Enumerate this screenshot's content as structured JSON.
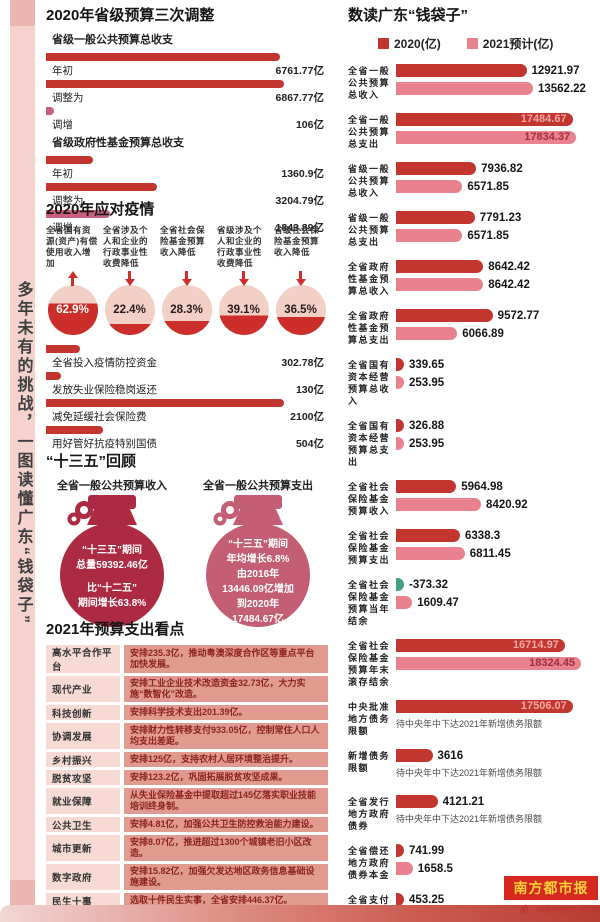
{
  "page": {
    "side_title": "多年未有的挑战，一图读懂广东“钱袋子”",
    "brand": {
      "name": "南方都市报",
      "sub": "奥一网oeeee.com"
    }
  },
  "colors": {
    "primary_red": "#c2362f",
    "accent_magenta": "#c95f7e",
    "pink_bar": "#e8828f",
    "green_bar": "#43a07a",
    "circle_bg": "#f3d0c6",
    "circle_fill": "#cb2e2b",
    "bag_dark": "#ad2a43",
    "bag_pink": "#c35e74",
    "inside_on_dark": "#efa9a4",
    "inside_on_pink": "#a52f38"
  },
  "adjustments": {
    "title": "2020年省级预算三次调整",
    "groups": [
      {
        "subtitle": "省级一般公共预算总收支",
        "rows": [
          {
            "label": "年初",
            "display": "6761.77亿",
            "value": 6761.77,
            "tone": "dark"
          },
          {
            "label": "调整为",
            "display": "6867.77亿",
            "value": 6867.77,
            "tone": "dark"
          },
          {
            "label": "调增",
            "display": "106亿",
            "value": 106,
            "tone": "pink"
          }
        ]
      },
      {
        "subtitle": "省级政府性基金预算总收支",
        "rows": [
          {
            "label": "年初",
            "display": "1360.9亿",
            "value": 1360.9,
            "tone": "dark"
          },
          {
            "label": "调整为",
            "display": "3204.79亿",
            "value": 3204.79,
            "tone": "dark"
          },
          {
            "label": "调增",
            "display": "1843.89亿",
            "value": 1843.89,
            "tone": "pink"
          }
        ]
      }
    ]
  },
  "covid": {
    "title": "2020年应对疫情",
    "circles": [
      {
        "label": "全省国有资源(资产)有偿使用收入增加",
        "pct": "62.9%",
        "fill": 62.9,
        "dir": "up"
      },
      {
        "label": "全省涉及个人和企业的行政事业性收费降低",
        "pct": "22.4%",
        "fill": 22.4,
        "dir": "down"
      },
      {
        "label": "全省社会保险基金预算收入降低",
        "pct": "28.3%",
        "fill": 28.3,
        "dir": "down"
      },
      {
        "label": "省级涉及个人和企业的行政事业性收费降低",
        "pct": "39.1%",
        "fill": 39.1,
        "dir": "down"
      },
      {
        "label": "省级社会保险基金预算收入降低",
        "pct": "36.5%",
        "fill": 36.5,
        "dir": "down"
      }
    ],
    "rows": [
      {
        "label": "全省投入疫情防控资金",
        "display": "302.78亿",
        "value": 302.78,
        "tone": "dark"
      },
      {
        "label": "发放失业保险稳岗返还",
        "display": "130亿",
        "value": 130,
        "tone": "dark"
      },
      {
        "label": "减免延缓社会保险费",
        "display": "2100亿",
        "value": 2100,
        "tone": "dark"
      },
      {
        "label": "用好管好抗疫特别国债",
        "display": "504亿",
        "value": 504,
        "tone": "dark"
      }
    ]
  },
  "review": {
    "title": "“十三五”回顾",
    "bags": [
      {
        "header": "全省一般公共预算收入",
        "tone": "dark",
        "lines": [
          "“十三五”期间",
          "总量59392.46亿",
          "",
          "比“十二五”",
          "期间增长63.8%"
        ]
      },
      {
        "header": "全省一般公共预算支出",
        "tone": "pink",
        "lines": [
          "“十三五”期间",
          "年均增长6.8%",
          "由2016年",
          "13446.09亿增加",
          "到2020年",
          "17484.67亿"
        ]
      }
    ]
  },
  "outlook": {
    "title": "2021年预算支出看点",
    "rows": [
      {
        "label": "高水平合作平台",
        "desc": "安排235.3亿，推动粤澳深度合作区等重点平台加快发展。"
      },
      {
        "label": "现代产业",
        "desc": "安排工业企业技术改造资金32.73亿，大力实施“数智化”改造。"
      },
      {
        "label": "科技创新",
        "desc": "安排科学技术支出201.39亿。"
      },
      {
        "label": "协调发展",
        "desc": "安排财力性转移支付933.05亿，控制常住人口人均支出差距。"
      },
      {
        "label": "乡村振兴",
        "desc": "安排125亿，支持农村人居环境整治提升。"
      },
      {
        "label": "脱贫攻坚",
        "desc": "安排123.2亿，巩固拓展脱贫攻坚成果。"
      },
      {
        "label": "就业保障",
        "desc": "从失业保险基金中提取超过145亿落实职业技能培训终身制。"
      },
      {
        "label": "公共卫生",
        "desc": "安排4.81亿，加强公共卫生防控救治能力建设。"
      },
      {
        "label": "城市更新",
        "desc": "安排8.07亿，推进超过1300个城镇老旧小区改造。"
      },
      {
        "label": "数字政府",
        "desc": "安排15.82亿，加强欠发达地区政务信息基础设施建设。"
      },
      {
        "label": "民生十事",
        "desc": "选取十件民生实事，全省安排446.37亿。"
      }
    ]
  },
  "readout": {
    "title": "数读广东“钱袋子”",
    "legend": [
      {
        "label": "2020(亿)",
        "tone": "dark"
      },
      {
        "label": "2021预计(亿)",
        "tone": "pink"
      }
    ],
    "groups": [
      {
        "label": "全省一般公共预算总收入",
        "v2020": "12921.97",
        "v2021": "13562.22"
      },
      {
        "label": "全省一般公共预算总支出",
        "v2020": "17484.67",
        "v2021": "17834.37"
      },
      {
        "label": "省级一般公共预算总收入",
        "v2020": "7936.82",
        "v2021": "6571.85"
      },
      {
        "label": "省级一般公共预算总支出",
        "v2020": "7791.23",
        "v2021": "6571.85"
      },
      {
        "label": "全省政府性基金预算总收入",
        "v2020": "8642.42",
        "v2021": "8642.42"
      },
      {
        "label": "全省政府性基金预算总支出",
        "v2020": "9572.77",
        "v2021": "6066.89"
      },
      {
        "label": "全省国有资本经营预算总收入",
        "v2020": "339.65",
        "v2021": "253.95"
      },
      {
        "label": "全省国有资本经营预算总支出",
        "v2020": "326.88",
        "v2021": "253.95"
      },
      {
        "label": "全省社会保险基金预算收入",
        "v2020": "5964.98",
        "v2021": "8420.92"
      },
      {
        "label": "全省社会保险基金预算支出",
        "v2020": "6338.3",
        "v2021": "6811.45"
      },
      {
        "label": "全省社会保险基金预算当年结余",
        "v2020": "-373.32",
        "v2021": "1609.47"
      },
      {
        "label": "全省社会保险基金预算年末滚存结余",
        "v2020": "16714.97",
        "v2021": "18324.45"
      },
      {
        "label": "中央批准地方债务限额",
        "v2020": "17506.07",
        "v2021": null,
        "note": "待中央年中下达2021年新增债务限额"
      },
      {
        "label": "新增债务限额",
        "v2020": "3616",
        "v2021": null,
        "note": "待中央年中下达2021年新增债务限额"
      },
      {
        "label": "全省发行地方政府债券",
        "v2020": "4121.21",
        "v2021": null,
        "note": "待中央年中下达2021年新增债务限额"
      },
      {
        "label": "全省偿还地方政府债券本金",
        "v2020": "741.99",
        "v2021": "1658.5"
      },
      {
        "label": "全省支付地方政府债券利息",
        "v2020": "453.25",
        "v2021": "524.44"
      }
    ]
  },
  "chart_data": [
    {
      "type": "bar",
      "orientation": "horizontal",
      "title": "数读广东“钱袋子”",
      "legend_position": "top",
      "categories": [
        "全省一般公共预算总收入",
        "全省一般公共预算总支出",
        "省级一般公共预算总收入",
        "省级一般公共预算总支出",
        "全省政府性基金预算总收入",
        "全省政府性基金预算总支出",
        "全省国有资本经营预算总收入",
        "全省国有资本经营预算总支出",
        "全省社会保险基金预算收入",
        "全省社会保险基金预算支出",
        "全省社会保险基金预算当年结余",
        "全省社会保险基金预算年末滚存结余",
        "中央批准地方债务限额",
        "新增债务限额",
        "全省发行地方政府债券",
        "全省偿还地方政府债券本金",
        "全省支付地方政府债券利息"
      ],
      "series": [
        {
          "name": "2020(亿)",
          "values": [
            12921.97,
            17484.67,
            7936.82,
            7791.23,
            8642.42,
            9572.77,
            339.65,
            326.88,
            5964.98,
            6338.3,
            -373.32,
            16714.97,
            17506.07,
            3616,
            4121.21,
            741.99,
            453.25
          ]
        },
        {
          "name": "2021预计(亿)",
          "values": [
            13562.22,
            17834.37,
            6571.85,
            6571.85,
            8642.42,
            6066.89,
            253.95,
            253.95,
            8420.92,
            6811.45,
            1609.47,
            18324.45,
            null,
            null,
            null,
            1658.5,
            524.44
          ]
        }
      ],
      "annotations": [
        "待中央年中下达2021年新增债务限额"
      ]
    },
    {
      "type": "bar",
      "orientation": "horizontal",
      "title": "2020年省级预算三次调整",
      "categories": [
        "一般公共预算 年初",
        "一般公共预算 调整为",
        "一般公共预算 调增",
        "政府性基金预算 年初",
        "政府性基金预算 调整为",
        "政府性基金预算 调增"
      ],
      "values": [
        6761.77,
        6867.77,
        106,
        1360.9,
        3204.79,
        1843.89
      ],
      "unit": "亿"
    },
    {
      "type": "bar",
      "title": "2020年应对疫情（百分比圆环）",
      "categories": [
        "全省国有资源(资产)有偿使用收入增加",
        "全省涉及个人和企业的行政事业性收费降低",
        "全省社会保险基金预算收入降低",
        "省级涉及个人和企业的行政事业性收费降低",
        "省级社会保险基金预算收入降低"
      ],
      "values": [
        62.9,
        22.4,
        28.3,
        39.1,
        36.5
      ],
      "unit": "%",
      "directions": [
        "up",
        "down",
        "down",
        "down",
        "down"
      ]
    },
    {
      "type": "bar",
      "orientation": "horizontal",
      "title": "2020年应对疫情（资金）",
      "categories": [
        "全省投入疫情防控资金",
        "发放失业保险稳岗返还",
        "减免延缓社会保险费",
        "用好管好抗疫特别国债"
      ],
      "values": [
        302.78,
        130,
        2100,
        504
      ],
      "unit": "亿"
    },
    {
      "type": "table",
      "title": "2021年预算支出看点",
      "categories": [
        "高水平合作平台",
        "现代产业",
        "科技创新",
        "协调发展",
        "乡村振兴",
        "脱贫攻坚",
        "就业保障",
        "公共卫生",
        "城市更新",
        "数字政府",
        "民生十事"
      ],
      "values": [
        235.3,
        32.73,
        201.39,
        933.05,
        125,
        123.2,
        145,
        4.81,
        8.07,
        15.82,
        446.37
      ],
      "unit": "亿"
    }
  ]
}
